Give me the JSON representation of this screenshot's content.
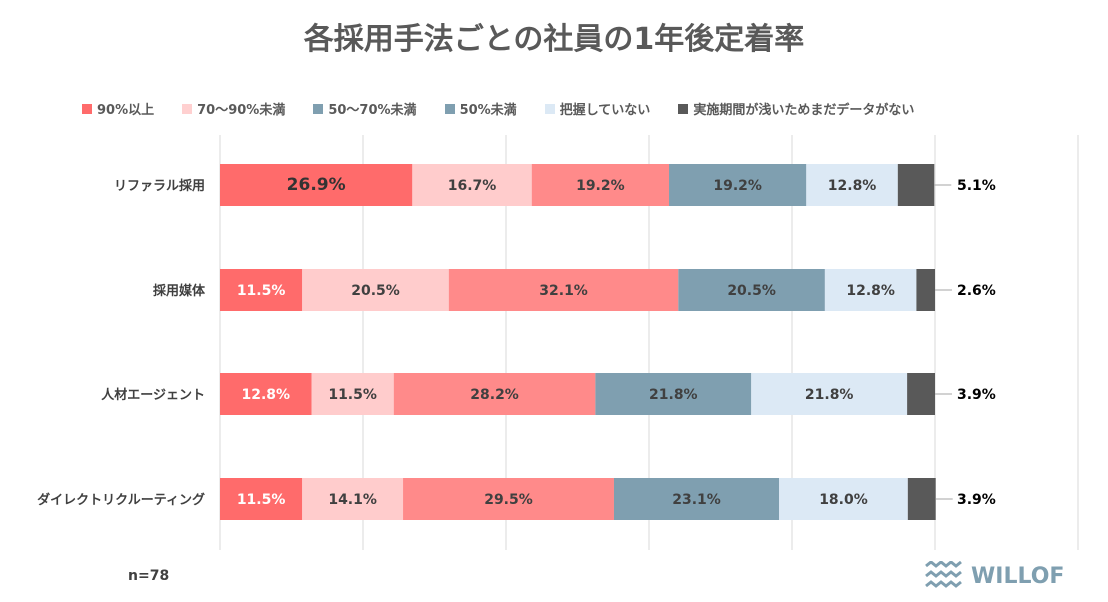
{
  "chart_data": {
    "type": "bar",
    "orientation": "horizontal-stacked-100",
    "title": "各採用手法ごとの社員の1年後定着率",
    "legend_position": "top",
    "xlim": [
      0,
      120
    ],
    "grid": true,
    "categories": [
      "リファラル採用",
      "採用媒体",
      "人材エージェント",
      "ダイレクトリクルーティング"
    ],
    "series": [
      {
        "name": "90%以上",
        "legend_color": "#FF6B6B",
        "bar_color": "#FF6B6B",
        "label_color": "#ffffff",
        "values": [
          26.9,
          11.5,
          12.8,
          11.5
        ]
      },
      {
        "name": "70～90%未満",
        "legend_color": "#FFD0D0",
        "bar_color": "#FFCCCC",
        "label_color": "#404040",
        "values": [
          16.7,
          20.5,
          11.5,
          14.1
        ]
      },
      {
        "name": "50～70%未満",
        "legend_color": "#7F9FB0",
        "bar_color": "#FF8A8A",
        "label_color": "#404040",
        "values": [
          19.2,
          32.1,
          28.2,
          29.5
        ]
      },
      {
        "name": "50%未満",
        "legend_color": "#7F9FB0",
        "bar_color": "#7F9FB0",
        "label_color": "#404040",
        "values": [
          19.2,
          20.5,
          21.8,
          23.1
        ]
      },
      {
        "name": "把握していない",
        "legend_color": "#DCE9F5",
        "bar_color": "#DCE9F5",
        "label_color": "#404040",
        "values": [
          12.8,
          12.8,
          21.8,
          18.0
        ]
      },
      {
        "name": "実施期間が浅いためまだデータがない",
        "legend_color": "#595959",
        "bar_color": "#595959",
        "label_color": "#000000",
        "values": [
          5.1,
          2.6,
          3.9,
          3.9
        ]
      }
    ]
  },
  "footnote": "n=78",
  "logo": "WILLOF"
}
